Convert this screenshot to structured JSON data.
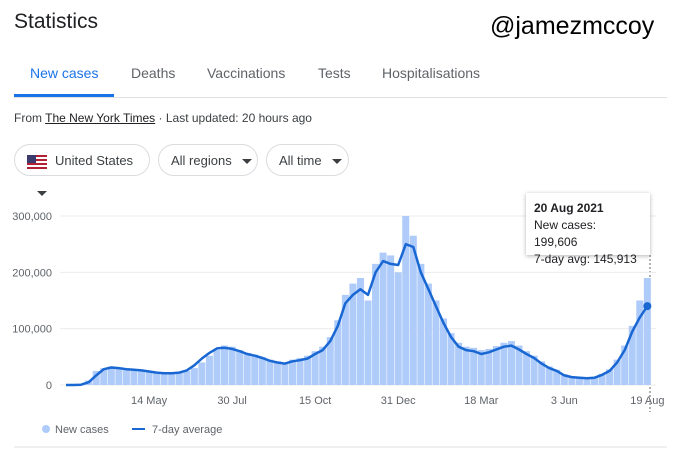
{
  "header": {
    "title": "Statistics",
    "watermark": "@jamezmccoy"
  },
  "tabs": [
    "New cases",
    "Deaths",
    "Vaccinations",
    "Tests",
    "Hospitalisations"
  ],
  "source": {
    "prefix": "From",
    "link": "The New York Times",
    "updated": "· Last updated: 20 hours ago"
  },
  "filters": [
    "United States",
    "All regions",
    "All time"
  ],
  "tooltip": {
    "date": "20 Aug 2021",
    "lines": [
      "New cases: 199,606",
      "7-day avg: 145,913"
    ]
  },
  "chart_data": {
    "type": "bar-line",
    "categories": [
      null,
      null,
      null,
      null,
      null,
      null,
      null,
      null,
      null,
      null,
      null,
      "14 May",
      null,
      null,
      null,
      null,
      null,
      null,
      null,
      null,
      null,
      null,
      "30 Jul",
      null,
      null,
      null,
      null,
      null,
      null,
      null,
      null,
      null,
      null,
      "15 Oct",
      null,
      null,
      null,
      null,
      null,
      null,
      null,
      null,
      null,
      null,
      "31 Dec",
      null,
      null,
      null,
      null,
      null,
      null,
      null,
      null,
      null,
      null,
      "18 Mar",
      null,
      null,
      null,
      null,
      null,
      null,
      null,
      null,
      null,
      null,
      "3 Jun",
      null,
      null,
      null,
      null,
      null,
      null,
      null,
      null,
      null,
      null,
      "19 Aug"
    ],
    "series": [
      {
        "name": "New cases",
        "color": "#aecbfa",
        "values": [
          0,
          0,
          1000,
          8000,
          25000,
          30000,
          33000,
          31000,
          29000,
          28000,
          27000,
          25000,
          23000,
          22000,
          21000,
          23000,
          25000,
          30000,
          40000,
          52000,
          62000,
          70000,
          68000,
          62000,
          57000,
          54000,
          50000,
          45000,
          42000,
          40000,
          45000,
          48000,
          52000,
          60000,
          68000,
          85000,
          115000,
          160000,
          180000,
          190000,
          150000,
          215000,
          235000,
          230000,
          200000,
          300000,
          265000,
          215000,
          180000,
          150000,
          118000,
          92000,
          75000,
          68000,
          66000,
          62000,
          64000,
          69000,
          75000,
          78000,
          70000,
          60000,
          52000,
          42000,
          33000,
          27000,
          19000,
          15000,
          14000,
          12000,
          14000,
          20000,
          28000,
          45000,
          70000,
          105000,
          150000,
          190000
        ]
      },
      {
        "name": "7-day average",
        "color": "#1967d2",
        "values": [
          0,
          0,
          500,
          5000,
          17000,
          28000,
          31000,
          30000,
          28000,
          27000,
          26000,
          24000,
          22000,
          21000,
          21000,
          22000,
          26000,
          35000,
          47000,
          57000,
          65000,
          66000,
          64000,
          60000,
          55000,
          52000,
          48000,
          43000,
          40000,
          38000,
          42000,
          44000,
          47000,
          55000,
          62000,
          78000,
          105000,
          145000,
          160000,
          170000,
          160000,
          200000,
          220000,
          215000,
          213000,
          250000,
          245000,
          200000,
          170000,
          140000,
          110000,
          85000,
          68000,
          62000,
          60000,
          55000,
          58000,
          63000,
          68000,
          70000,
          63000,
          55000,
          48000,
          38000,
          30000,
          25000,
          17000,
          14000,
          13000,
          12000,
          13000,
          18000,
          25000,
          40000,
          62000,
          95000,
          120000,
          140000
        ]
      }
    ],
    "ylim": [
      0,
      300000
    ],
    "yticks": [
      0,
      {
        "value": 100000,
        "label": "100,000"
      },
      {
        "value": 200000,
        "label": "200,000"
      },
      {
        "value": 300000,
        "label": "300,000"
      }
    ],
    "grid": true
  }
}
